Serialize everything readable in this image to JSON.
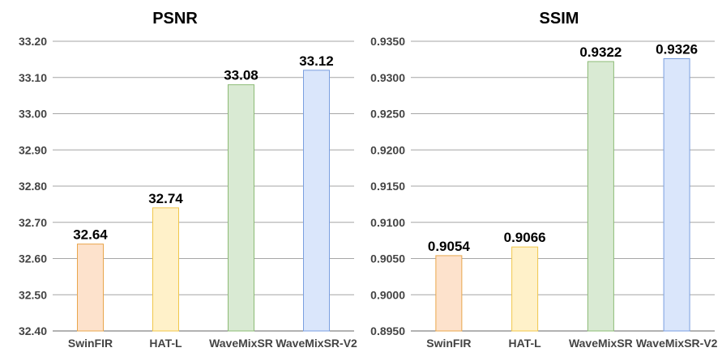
{
  "chart_data": [
    {
      "type": "bar",
      "title": "PSNR",
      "categories": [
        "SwinFIR",
        "HAT-L",
        "WaveMixSR",
        "WaveMixSR-V2"
      ],
      "values": [
        32.64,
        32.74,
        33.08,
        33.12
      ],
      "value_labels": [
        "32.64",
        "32.74",
        "33.08",
        "33.12"
      ],
      "yticks": [
        "32.40",
        "32.50",
        "32.60",
        "32.70",
        "32.80",
        "32.90",
        "33.00",
        "33.10",
        "33.20"
      ],
      "ylim": [
        32.4,
        33.2
      ],
      "grid": true,
      "colors": {
        "fill": [
          "#fde2cc",
          "#fff1c9",
          "#d9ead3",
          "#dae6fb"
        ],
        "stroke": [
          "#e9a64c",
          "#f1c74b",
          "#8cbb75",
          "#7a9fe0"
        ]
      }
    },
    {
      "type": "bar",
      "title": "SSIM",
      "categories": [
        "SwinFIR",
        "HAT-L",
        "WaveMixSR",
        "WaveMixSR-V2"
      ],
      "values": [
        0.9054,
        0.9066,
        0.9322,
        0.9326
      ],
      "value_labels": [
        "0.9054",
        "0.9066",
        "0.9322",
        "0.9326"
      ],
      "yticks": [
        "0.8950",
        "0.9000",
        "0.9050",
        "0.9100",
        "0.9150",
        "0.9200",
        "0.9250",
        "0.9300",
        "0.9350"
      ],
      "ylim": [
        0.895,
        0.935
      ],
      "grid": true,
      "colors": {
        "fill": [
          "#fde2cc",
          "#fff1c9",
          "#d9ead3",
          "#dae6fb"
        ],
        "stroke": [
          "#e9a64c",
          "#f1c74b",
          "#8cbb75",
          "#7a9fe0"
        ]
      }
    }
  ]
}
